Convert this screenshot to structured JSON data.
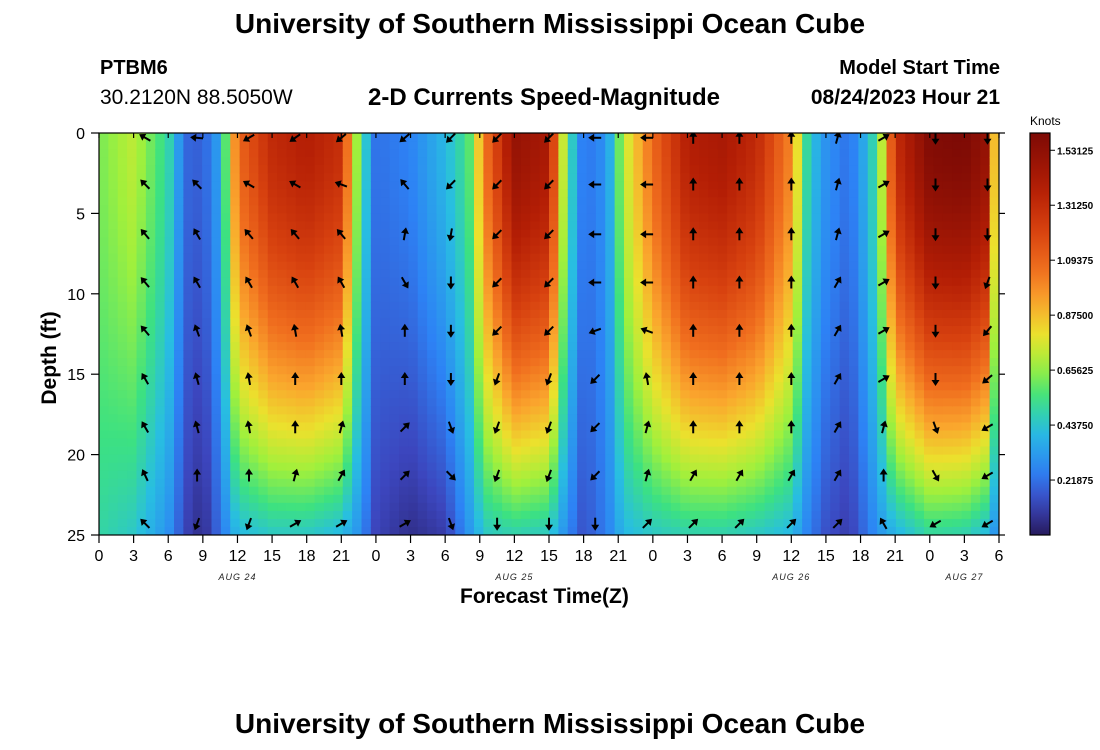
{
  "header": {
    "title": "University of Southern Mississippi Ocean Cube",
    "station": "PTBM6",
    "coordinates": "30.2120N  88.5050W",
    "subtitle": "2-D Currents Speed-Magnitude",
    "model_start_label": "Model Start Time",
    "model_start_value": "08/24/2023 Hour 21"
  },
  "footer": {
    "title": "University of Southern Mississippi Ocean Cube"
  },
  "chart_data": {
    "type": "heatmap",
    "title": "2-D Currents Speed-Magnitude",
    "xlabel": "Forecast Time(Z)",
    "ylabel": "Depth (ft)",
    "x_unit": "hours since AUG 24 00Z",
    "xlim": [
      0,
      78
    ],
    "ylim": [
      25,
      0
    ],
    "x_ticks": [
      {
        "t": 0,
        "label": "0"
      },
      {
        "t": 3,
        "label": "3"
      },
      {
        "t": 6,
        "label": "6"
      },
      {
        "t": 9,
        "label": "9"
      },
      {
        "t": 12,
        "label": "12"
      },
      {
        "t": 15,
        "label": "15"
      },
      {
        "t": 18,
        "label": "18"
      },
      {
        "t": 21,
        "label": "21"
      },
      {
        "t": 24,
        "label": "0"
      },
      {
        "t": 27,
        "label": "3"
      },
      {
        "t": 30,
        "label": "6"
      },
      {
        "t": 33,
        "label": "9"
      },
      {
        "t": 36,
        "label": "12"
      },
      {
        "t": 39,
        "label": "15"
      },
      {
        "t": 42,
        "label": "18"
      },
      {
        "t": 45,
        "label": "21"
      },
      {
        "t": 48,
        "label": "0"
      },
      {
        "t": 51,
        "label": "3"
      },
      {
        "t": 54,
        "label": "6"
      },
      {
        "t": 57,
        "label": "9"
      },
      {
        "t": 60,
        "label": "12"
      },
      {
        "t": 63,
        "label": "15"
      },
      {
        "t": 66,
        "label": "18"
      },
      {
        "t": 69,
        "label": "21"
      },
      {
        "t": 72,
        "label": "0"
      },
      {
        "t": 75,
        "label": "3"
      },
      {
        "t": 78,
        "label": "6"
      }
    ],
    "date_labels": [
      {
        "t": 12,
        "label": "AUG 24"
      },
      {
        "t": 36,
        "label": "AUG 25"
      },
      {
        "t": 60,
        "label": "AUG 26"
      },
      {
        "t": 75,
        "label": "AUG 27"
      }
    ],
    "y_ticks": [
      0,
      5,
      10,
      15,
      20,
      25
    ],
    "colorbar": {
      "title": "Knots",
      "min": 0.0,
      "max": 1.6,
      "ticks": [
        1.53125,
        1.3125,
        1.09375,
        0.875,
        0.65625,
        0.4375,
        0.21875
      ],
      "tick_labels": [
        "1.53125",
        "1.31250",
        "1.09375",
        "0.87500",
        "0.65625",
        "0.43750",
        "0.21875"
      ]
    },
    "speed_field": {
      "description": "Speed (knots) by time; surface/bottom profiles",
      "time_hours": [
        0,
        3,
        6,
        7.5,
        9,
        10.5,
        12,
        15,
        18,
        21,
        22.5,
        24,
        27,
        30,
        32,
        33.5,
        36,
        39,
        40.5,
        42,
        44,
        45.5,
        48,
        51,
        54,
        57,
        60,
        61.5,
        63,
        65,
        66,
        67.5,
        69,
        72,
        75,
        77,
        78
      ],
      "surface_knots": [
        0.62,
        0.72,
        0.5,
        0.2,
        0.18,
        0.35,
        1.08,
        1.32,
        1.38,
        1.3,
        0.6,
        0.22,
        0.26,
        0.4,
        0.55,
        1.05,
        1.5,
        1.42,
        0.58,
        0.22,
        0.3,
        0.72,
        1.08,
        1.38,
        1.42,
        1.32,
        1.0,
        0.45,
        0.3,
        0.22,
        0.32,
        0.55,
        1.3,
        1.58,
        1.6,
        1.5,
        0.45
      ],
      "bottom_knots": [
        0.5,
        0.45,
        0.3,
        0.12,
        0.05,
        0.22,
        0.4,
        0.45,
        0.45,
        0.4,
        0.3,
        0.12,
        0.06,
        0.1,
        0.3,
        0.45,
        0.48,
        0.45,
        0.28,
        0.15,
        0.25,
        0.4,
        0.45,
        0.48,
        0.48,
        0.45,
        0.4,
        0.25,
        0.15,
        0.1,
        0.18,
        0.3,
        0.38,
        0.5,
        0.48,
        0.4,
        0.25
      ],
      "profile_exponent": 1.6
    },
    "vectors": {
      "description": "Current direction arrows (compass degrees toward which current flows) at sampled times and depths",
      "time_hours": [
        4,
        8.5,
        13,
        17,
        21,
        26.5,
        30.5,
        34.5,
        39,
        43,
        47.5,
        51.5,
        55.5,
        60,
        64,
        68,
        72.5,
        77
      ],
      "depths_ft": [
        0.3,
        3.2,
        6.3,
        9.3,
        12.3,
        15.3,
        18.3,
        21.3,
        24.3
      ],
      "directions_deg": [
        [
          300,
          315,
          320,
          320,
          320,
          330,
          330,
          335,
          315
        ],
        [
          275,
          315,
          330,
          330,
          340,
          345,
          345,
          360,
          200
        ],
        [
          240,
          300,
          320,
          330,
          340,
          350,
          350,
          360,
          200
        ],
        [
          235,
          300,
          320,
          330,
          350,
          360,
          360,
          15,
          60
        ],
        [
          230,
          290,
          320,
          330,
          350,
          360,
          15,
          30,
          60
        ],
        [
          230,
          320,
          10,
          150,
          360,
          360,
          45,
          45,
          60
        ],
        [
          225,
          225,
          190,
          180,
          180,
          180,
          160,
          135,
          160
        ],
        [
          225,
          225,
          225,
          225,
          225,
          200,
          200,
          200,
          180
        ],
        [
          225,
          225,
          225,
          225,
          225,
          200,
          200,
          200,
          180
        ],
        [
          270,
          270,
          270,
          270,
          250,
          225,
          225,
          225,
          180
        ],
        [
          270,
          270,
          270,
          270,
          290,
          350,
          15,
          15,
          45
        ],
        [
          360,
          360,
          360,
          360,
          360,
          360,
          360,
          30,
          45
        ],
        [
          360,
          360,
          360,
          360,
          360,
          360,
          360,
          30,
          45
        ],
        [
          360,
          360,
          360,
          360,
          360,
          360,
          360,
          30,
          45
        ],
        [
          15,
          15,
          15,
          30,
          30,
          30,
          30,
          30,
          45
        ],
        [
          60,
          60,
          60,
          60,
          60,
          60,
          15,
          360,
          330
        ],
        [
          180,
          180,
          180,
          180,
          180,
          180,
          160,
          150,
          240
        ],
        [
          180,
          180,
          180,
          200,
          220,
          230,
          240,
          240,
          240
        ]
      ]
    }
  }
}
